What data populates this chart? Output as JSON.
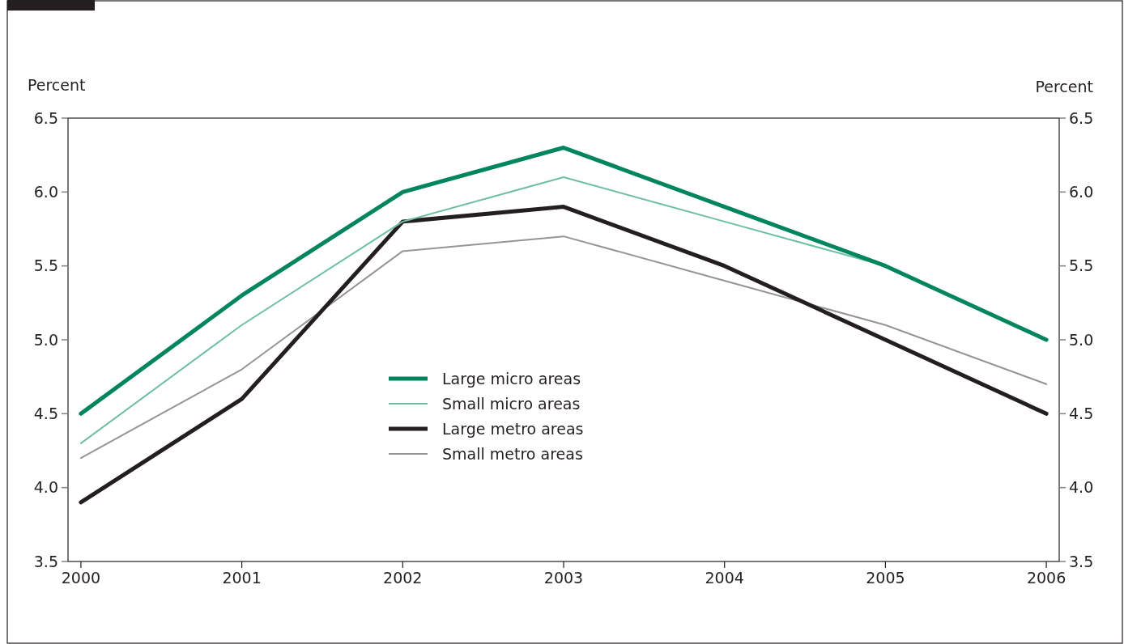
{
  "chart_data": {
    "type": "line",
    "ylabel": "Percent",
    "y2label": "Percent",
    "x": [
      2000,
      2001,
      2002,
      2003,
      2004,
      2005,
      2006
    ],
    "xlim": [
      1999.92,
      2006.08
    ],
    "xticks": [
      2000,
      2001,
      2002,
      2003,
      2004,
      2005,
      2006
    ],
    "ylim": [
      3.5,
      6.5
    ],
    "yticks": [
      3.5,
      {
        "value": 4.0,
        "label": "4.0"
      },
      4.5,
      {
        "value": 5.0,
        "label": "5.0"
      },
      5.5,
      {
        "value": 6.0,
        "label": "6.0"
      },
      6.5
    ],
    "y2lim": [
      3.5,
      6.5
    ],
    "y2ticks": [
      3.5,
      {
        "value": 4.0,
        "label": "4.0"
      },
      4.5,
      {
        "value": 5.0,
        "label": "5.0"
      },
      5.5,
      {
        "value": 6.0,
        "label": "6.0"
      },
      6.5
    ],
    "legend": "center",
    "grid": false,
    "marker": "none",
    "line_style": "solid",
    "series": [
      {
        "name": "Large micro areas",
        "color": "#00855f",
        "values": [
          4.5,
          5.3,
          6.0,
          6.3,
          5.9,
          5.5,
          5.0
        ]
      },
      {
        "name": "Small micro areas",
        "color": "#6dbf9f",
        "values": [
          4.3,
          5.1,
          5.8,
          6.1,
          5.8,
          5.5,
          null
        ]
      },
      {
        "name": "Large metro areas",
        "color": "#231f20",
        "values": [
          3.9,
          4.6,
          5.8,
          5.9,
          5.5,
          5.0,
          4.5
        ]
      },
      {
        "name": "Small metro areas",
        "color": "#939598",
        "values": [
          4.2,
          4.8,
          5.6,
          5.7,
          5.4,
          5.1,
          4.7
        ]
      }
    ]
  }
}
